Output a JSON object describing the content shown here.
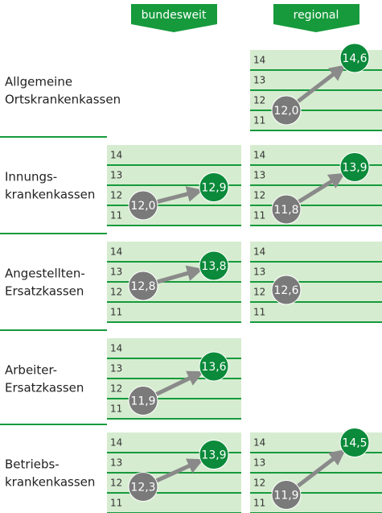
{
  "columns": [
    "bundesweit",
    "regional"
  ],
  "yticks": [
    11,
    12,
    13,
    14
  ],
  "rows": [
    {
      "label": [
        "Allgemeine",
        "Ortskrankenkassen"
      ],
      "panels": [
        null,
        {
          "values": [
            12.0,
            14.6
          ],
          "value_labels": [
            "12,0",
            "14,6"
          ]
        }
      ]
    },
    {
      "label": [
        "Innungs-",
        "krankenkassen"
      ],
      "panels": [
        {
          "values": [
            12.0,
            12.9
          ],
          "value_labels": [
            "12,0",
            "12,9"
          ]
        },
        {
          "values": [
            11.8,
            13.9
          ],
          "value_labels": [
            "11,8",
            "13,9"
          ]
        }
      ]
    },
    {
      "label": [
        "Angestellten-",
        "Ersatzkassen"
      ],
      "panels": [
        {
          "values": [
            12.8,
            13.8
          ],
          "value_labels": [
            "12,8",
            "13,8"
          ]
        },
        {
          "values": [
            12.6
          ],
          "value_labels": [
            "12,6"
          ]
        }
      ]
    },
    {
      "label": [
        "Arbeiter-",
        "Ersatzkassen"
      ],
      "panels": [
        {
          "values": [
            11.9,
            13.6
          ],
          "value_labels": [
            "11,9",
            "13,6"
          ]
        },
        null
      ]
    },
    {
      "label": [
        "Betriebs-",
        "krankenkassen"
      ],
      "panels": [
        {
          "values": [
            12.3,
            13.9
          ],
          "value_labels": [
            "12,3",
            "13,9"
          ]
        },
        {
          "values": [
            11.9,
            14.5
          ],
          "value_labels": [
            "11,9",
            "14,5"
          ]
        }
      ]
    }
  ]
}
